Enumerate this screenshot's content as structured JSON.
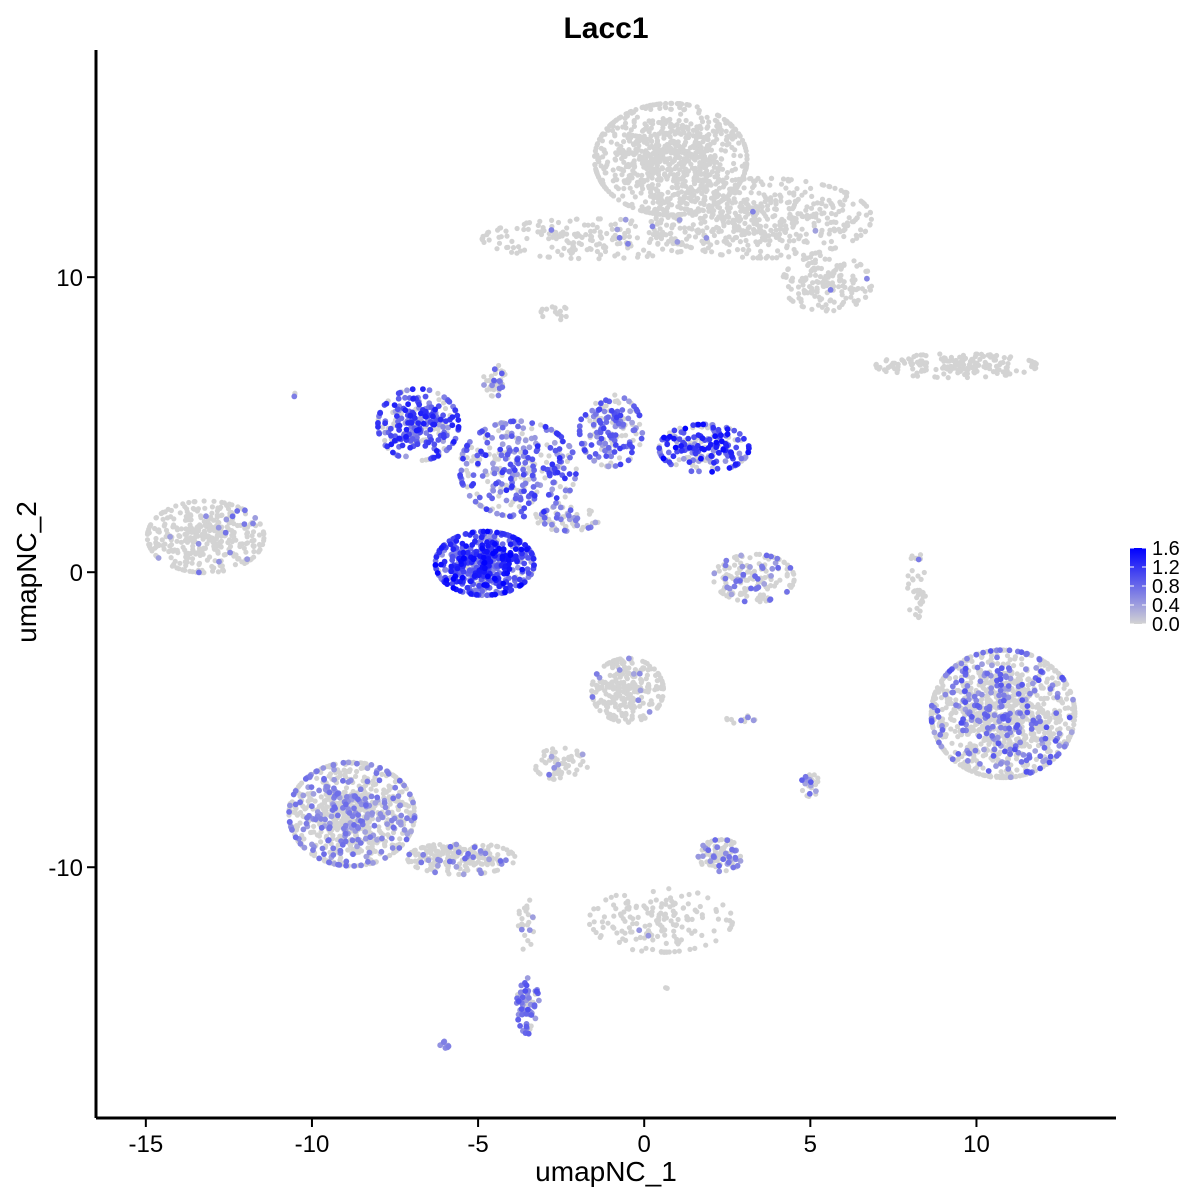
{
  "chart_data": {
    "type": "scatter",
    "title": "Lacc1",
    "xlabel": "umapNC_1",
    "ylabel": "umapNC_2",
    "xlim": [
      -16.5,
      14.2
    ],
    "ylim": [
      -18.5,
      17.7
    ],
    "x_ticks": [
      -15,
      -10,
      -5,
      0,
      5,
      10
    ],
    "y_ticks": [
      -10,
      0,
      10
    ],
    "x_tick_labels": [
      "-15",
      "-10",
      "-5",
      "0",
      "5",
      "10"
    ],
    "y_tick_labels": [
      "-10",
      "0",
      "10"
    ],
    "grid": false,
    "legend": {
      "placement": "right",
      "type": "colorbar",
      "min": 0.0,
      "max": 1.6,
      "ticks": [
        0.0,
        0.4,
        0.8,
        1.2,
        1.6
      ],
      "tick_labels": [
        "0.0",
        "0.4",
        "0.8",
        "1.2",
        "1.6"
      ],
      "low_color": "#d3d3d3",
      "high_color": "#0000ff"
    },
    "clusters": [
      {
        "center": [
          0.8,
          14.0
        ],
        "spread": [
          1.7,
          1.4
        ],
        "n": 900,
        "expr_frac": 0.0,
        "expr_max": 0.6
      },
      {
        "center": [
          3.6,
          12.0
        ],
        "spread": [
          2.4,
          1.0
        ],
        "n": 500,
        "expr_frac": 0.01,
        "expr_max": 0.7
      },
      {
        "center": [
          -1.5,
          11.3
        ],
        "spread": [
          2.5,
          0.5
        ],
        "n": 220,
        "expr_frac": 0.02,
        "expr_max": 0.7
      },
      {
        "center": [
          5.5,
          9.8
        ],
        "spread": [
          1.0,
          0.7
        ],
        "n": 160,
        "expr_frac": 0.01,
        "expr_max": 0.7
      },
      {
        "center": [
          9.4,
          7.0
        ],
        "spread": [
          1.8,
          0.3
        ],
        "n": 180,
        "expr_frac": 0.0,
        "expr_max": 0.4
      },
      {
        "center": [
          -2.7,
          8.8
        ],
        "spread": [
          0.3,
          0.2
        ],
        "n": 15,
        "expr_frac": 0.0,
        "expr_max": 0.4
      },
      {
        "center": [
          -6.8,
          5.0
        ],
        "spread": [
          0.9,
          0.9
        ],
        "n": 260,
        "expr_frac": 0.75,
        "expr_max": 1.4
      },
      {
        "center": [
          -3.8,
          3.5
        ],
        "spread": [
          1.3,
          1.2
        ],
        "n": 320,
        "expr_frac": 0.6,
        "expr_max": 1.3
      },
      {
        "center": [
          -1.0,
          4.8
        ],
        "spread": [
          0.7,
          0.9
        ],
        "n": 170,
        "expr_frac": 0.65,
        "expr_max": 1.2
      },
      {
        "center": [
          1.8,
          4.2
        ],
        "spread": [
          1.0,
          0.6
        ],
        "n": 200,
        "expr_frac": 0.7,
        "expr_max": 1.6
      },
      {
        "center": [
          -4.8,
          0.3
        ],
        "spread": [
          1.1,
          0.8
        ],
        "n": 520,
        "expr_frac": 0.92,
        "expr_max": 1.6
      },
      {
        "center": [
          -4.5,
          6.5
        ],
        "spread": [
          0.25,
          0.4
        ],
        "n": 40,
        "expr_frac": 0.3,
        "expr_max": 0.9
      },
      {
        "center": [
          -2.3,
          1.8
        ],
        "spread": [
          0.7,
          0.3
        ],
        "n": 60,
        "expr_frac": 0.4,
        "expr_max": 0.9
      },
      {
        "center": [
          -13.2,
          1.2
        ],
        "spread": [
          1.3,
          0.9
        ],
        "n": 380,
        "expr_frac": 0.05,
        "expr_max": 0.8
      },
      {
        "center": [
          3.3,
          -0.2
        ],
        "spread": [
          0.9,
          0.6
        ],
        "n": 150,
        "expr_frac": 0.25,
        "expr_max": 0.9
      },
      {
        "center": [
          8.2,
          -0.5
        ],
        "spread": [
          0.2,
          0.9
        ],
        "n": 40,
        "expr_frac": 0.05,
        "expr_max": 0.8
      },
      {
        "center": [
          10.8,
          -4.8
        ],
        "spread": [
          1.6,
          1.6
        ],
        "n": 1100,
        "expr_frac": 0.22,
        "expr_max": 1.0
      },
      {
        "center": [
          -0.5,
          -4.0
        ],
        "spread": [
          0.8,
          0.8
        ],
        "n": 260,
        "expr_frac": 0.04,
        "expr_max": 0.7
      },
      {
        "center": [
          -2.5,
          -6.5
        ],
        "spread": [
          0.6,
          0.4
        ],
        "n": 60,
        "expr_frac": 0.05,
        "expr_max": 0.7
      },
      {
        "center": [
          -8.8,
          -8.2
        ],
        "spread": [
          1.4,
          1.3
        ],
        "n": 800,
        "expr_frac": 0.3,
        "expr_max": 0.8
      },
      {
        "center": [
          -5.5,
          -9.7
        ],
        "spread": [
          1.2,
          0.4
        ],
        "n": 220,
        "expr_frac": 0.15,
        "expr_max": 0.8
      },
      {
        "center": [
          -3.5,
          -14.7
        ],
        "spread": [
          0.25,
          0.7
        ],
        "n": 70,
        "expr_frac": 0.6,
        "expr_max": 1.0
      },
      {
        "center": [
          -3.6,
          -12.0
        ],
        "spread": [
          0.2,
          0.8
        ],
        "n": 25,
        "expr_frac": 0.1,
        "expr_max": 0.7
      },
      {
        "center": [
          2.3,
          -9.6
        ],
        "spread": [
          0.5,
          0.4
        ],
        "n": 90,
        "expr_frac": 0.3,
        "expr_max": 0.8
      },
      {
        "center": [
          0.5,
          -11.8
        ],
        "spread": [
          1.6,
          0.8
        ],
        "n": 170,
        "expr_frac": 0.02,
        "expr_max": 0.6
      },
      {
        "center": [
          5.0,
          -7.2
        ],
        "spread": [
          0.2,
          0.3
        ],
        "n": 25,
        "expr_frac": 0.5,
        "expr_max": 0.9
      },
      {
        "center": [
          3.0,
          -5.0
        ],
        "spread": [
          0.4,
          0.1
        ],
        "n": 12,
        "expr_frac": 0.2,
        "expr_max": 0.7
      },
      {
        "center": [
          -6.0,
          -16.0
        ],
        "spread": [
          0.12,
          0.1
        ],
        "n": 8,
        "expr_frac": 1.0,
        "expr_max": 0.7
      },
      {
        "center": [
          -10.5,
          6.0
        ],
        "spread": [
          0.05,
          0.05
        ],
        "n": 3,
        "expr_frac": 0.5,
        "expr_max": 0.8
      },
      {
        "center": [
          0.7,
          -14.1
        ],
        "spread": [
          0.05,
          0.05
        ],
        "n": 3,
        "expr_frac": 0.5,
        "expr_max": 0.8
      }
    ]
  }
}
